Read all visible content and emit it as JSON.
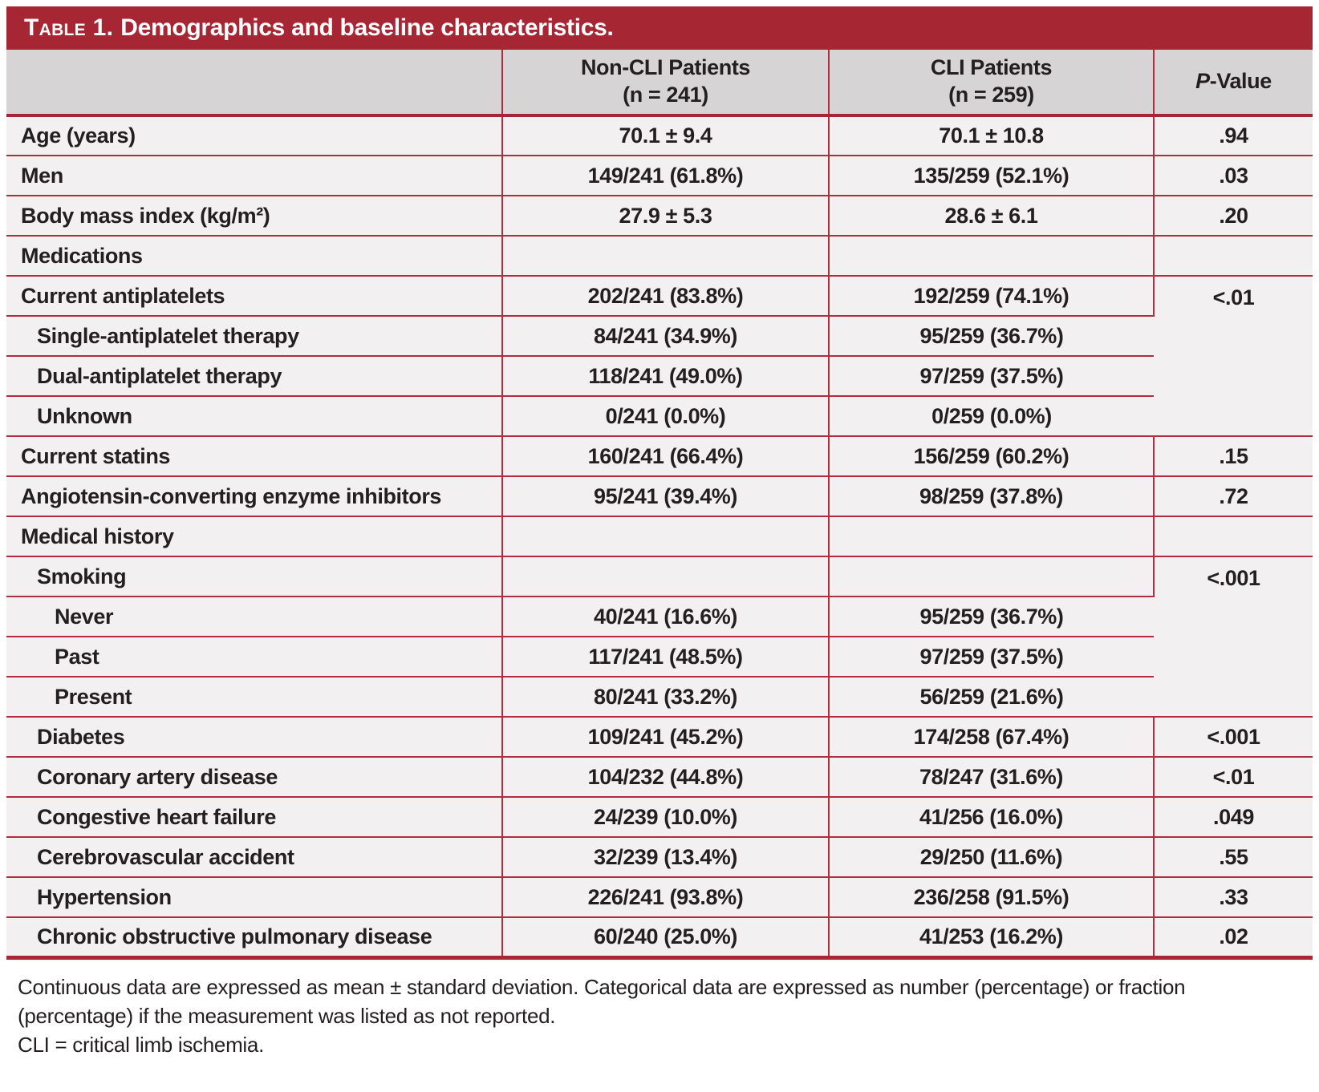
{
  "title": {
    "prefix": "Table 1.",
    "text": "Demographics and baseline characteristics."
  },
  "columns": {
    "label": "",
    "noncli": {
      "line1": "Non-CLI Patients",
      "line2": "(n = 241)"
    },
    "cli": {
      "line1": "CLI Patients",
      "line2": "(n = 259)"
    },
    "pvalue": {
      "italic": "P",
      "rest": "-Value"
    }
  },
  "rows": [
    {
      "label": "Age (years)",
      "noncli": "70.1 ± 9.4",
      "cli": "70.1 ± 10.8",
      "p": ".94"
    },
    {
      "label": "Men",
      "noncli": "149/241 (61.8%)",
      "cli": "135/259 (52.1%)",
      "p": ".03"
    },
    {
      "label": "Body mass index (kg/m²)",
      "noncli": "27.9 ± 5.3",
      "cli": "28.6 ± 6.1",
      "p": ".20"
    },
    {
      "label": "Medications",
      "noncli": "",
      "cli": "",
      "p": ""
    },
    {
      "label": "Current antiplatelets",
      "noncli": "202/241 (83.8%)",
      "cli": "192/259 (74.1%)",
      "p": "<.01"
    },
    {
      "label": "Single-antiplatelet therapy",
      "noncli": "84/241 (34.9%)",
      "cli": "95/259 (36.7%)"
    },
    {
      "label": "Dual-antiplatelet therapy",
      "noncli": "118/241 (49.0%)",
      "cli": "97/259 (37.5%)"
    },
    {
      "label": "Unknown",
      "noncli": "0/241 (0.0%)",
      "cli": "0/259 (0.0%)"
    },
    {
      "label": "Current statins",
      "noncli": "160/241 (66.4%)",
      "cli": "156/259 (60.2%)",
      "p": ".15"
    },
    {
      "label": "Angiotensin-converting enzyme inhibitors",
      "noncli": "95/241 (39.4%)",
      "cli": "98/259 (37.8%)",
      "p": ".72"
    },
    {
      "label": "Medical history",
      "noncli": "",
      "cli": "",
      "p": ""
    },
    {
      "label": "Smoking",
      "noncli": "",
      "cli": "",
      "p": "<.001"
    },
    {
      "label": "Never",
      "noncli": "40/241 (16.6%)",
      "cli": "95/259 (36.7%)"
    },
    {
      "label": "Past",
      "noncli": "117/241 (48.5%)",
      "cli": "97/259 (37.5%)"
    },
    {
      "label": "Present",
      "noncli": "80/241 (33.2%)",
      "cli": "56/259 (21.6%)"
    },
    {
      "label": "Diabetes",
      "noncli": "109/241 (45.2%)",
      "cli": "174/258 (67.4%)",
      "p": "<.001"
    },
    {
      "label": "Coronary artery disease",
      "noncli": "104/232 (44.8%)",
      "cli": "78/247 (31.6%)",
      "p": "<.01"
    },
    {
      "label": "Congestive heart failure",
      "noncli": "24/239 (10.0%)",
      "cli": "41/256 (16.0%)",
      "p": ".049"
    },
    {
      "label": "Cerebrovascular accident",
      "noncli": "32/239 (13.4%)",
      "cli": "29/250 (11.6%)",
      "p": ".55"
    },
    {
      "label": "Hypertension",
      "noncli": "226/241 (93.8%)",
      "cli": "236/258 (91.5%)",
      "p": ".33"
    },
    {
      "label": "Chronic obstructive pulmonary disease",
      "noncli": "60/240 (25.0%)",
      "cli": "41/253 (16.2%)",
      "p": ".02"
    }
  ],
  "footnotes": [
    "Continuous data are expressed as mean ± standard deviation. Categorical data are expressed as number (percentage) or fraction (percentage) if the measurement was listed as not reported.",
    "CLI = critical limb ischemia."
  ],
  "colors": {
    "accent_red": "#a72633",
    "border_red": "#b12d3e",
    "header_bg": "#d6d4d4",
    "row_bg": "#f2f0f0",
    "text": "#231f20",
    "title_text": "#ffffff"
  }
}
